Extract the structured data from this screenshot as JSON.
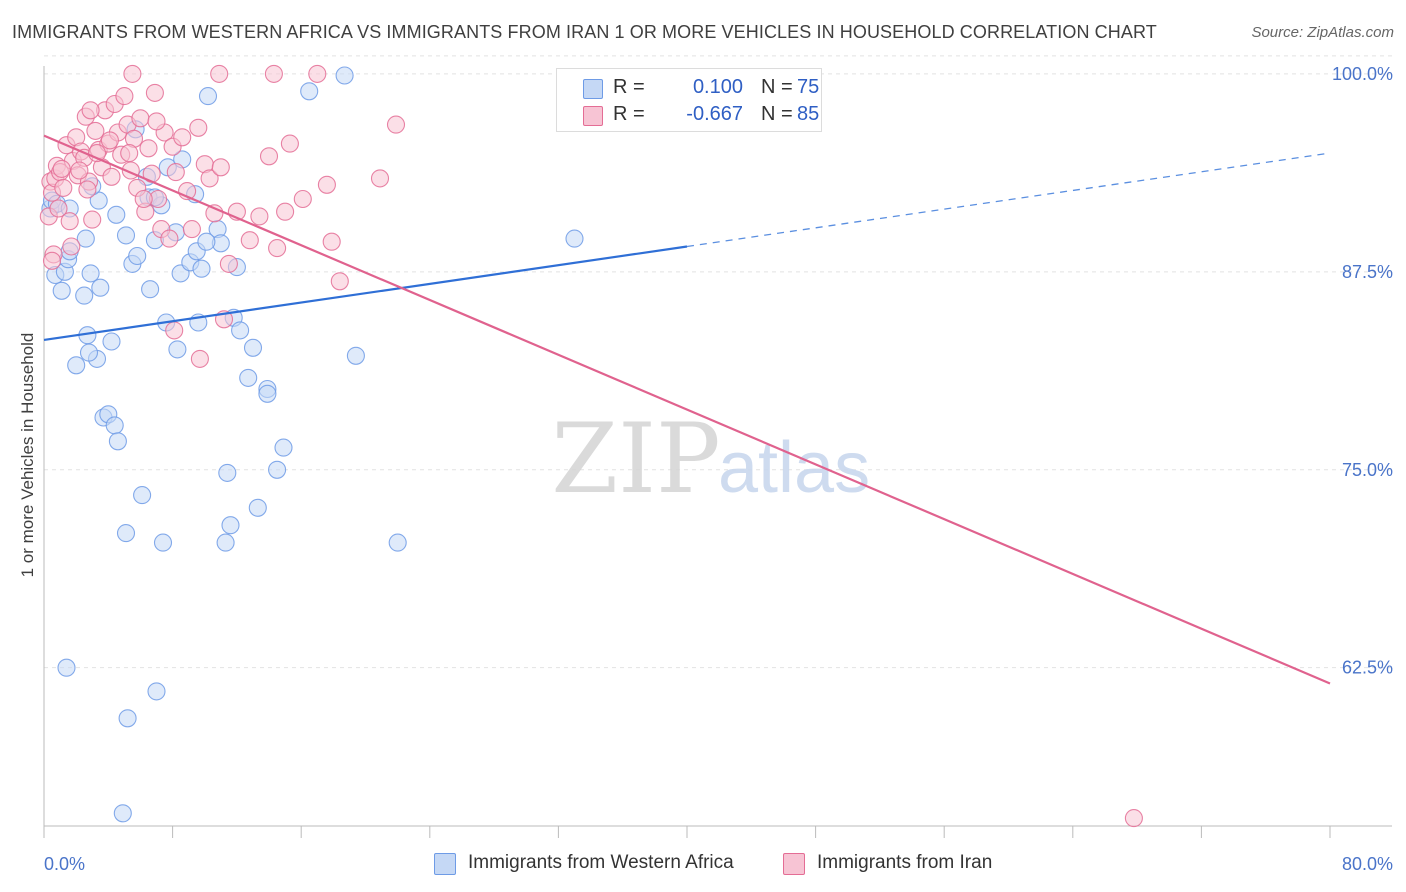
{
  "chart_data": {
    "type": "scatter",
    "title": "IMMIGRANTS FROM WESTERN AFRICA VS IMMIGRANTS FROM IRAN 1 OR MORE VEHICLES IN HOUSEHOLD CORRELATION CHART",
    "source": "Source: ZipAtlas.com",
    "xlabel": "",
    "ylabel": "1 or more Vehicles in Household",
    "xlim": [
      0,
      80
    ],
    "ylim": [
      52.5,
      100.5
    ],
    "x_tick_labels": [
      "0.0%",
      "80.0%"
    ],
    "y_ticks": [
      62.5,
      75.0,
      87.5,
      100.0
    ],
    "y_tick_labels": [
      "62.5%",
      "75.0%",
      "87.5%",
      "100.0%"
    ],
    "grid": true,
    "watermark": "ZIPatlas",
    "legend": {
      "placement": "top-center",
      "entries": [
        {
          "r_label": "R =",
          "r_value": "0.100",
          "n_label": "N =",
          "n_value": "75"
        },
        {
          "r_label": "R =",
          "r_value": "-0.667",
          "n_label": "N =",
          "n_value": "85"
        }
      ]
    },
    "series": [
      {
        "name": "Immigrants from Western Africa",
        "color": "#6e9be6",
        "fill": "#c5d8f5",
        "trend": {
          "x": [
            0,
            40
          ],
          "y": [
            83.2,
            89.1
          ],
          "dashed_to": [
            80,
            95.0
          ]
        },
        "points": [
          [
            0.4,
            91.5
          ],
          [
            0.5,
            92.0
          ],
          [
            0.7,
            87.3
          ],
          [
            0.8,
            91.8
          ],
          [
            1.1,
            86.3
          ],
          [
            1.3,
            87.5
          ],
          [
            1.5,
            88.3
          ],
          [
            1.6,
            91.5
          ],
          [
            2.0,
            81.6
          ],
          [
            2.5,
            86.0
          ],
          [
            2.6,
            89.6
          ],
          [
            2.7,
            83.5
          ],
          [
            2.9,
            87.4
          ],
          [
            3.3,
            82.0
          ],
          [
            3.4,
            92.0
          ],
          [
            3.5,
            86.5
          ],
          [
            3.7,
            78.3
          ],
          [
            4.0,
            78.5
          ],
          [
            4.2,
            83.1
          ],
          [
            4.4,
            77.8
          ],
          [
            4.5,
            91.1
          ],
          [
            4.6,
            76.8
          ],
          [
            5.1,
            89.8
          ],
          [
            5.5,
            88.0
          ],
          [
            5.7,
            96.5
          ],
          [
            5.8,
            88.5
          ],
          [
            6.1,
            73.4
          ],
          [
            6.5,
            92.2
          ],
          [
            6.6,
            86.4
          ],
          [
            6.9,
            89.5
          ],
          [
            7.3,
            91.7
          ],
          [
            7.6,
            84.3
          ],
          [
            7.7,
            94.1
          ],
          [
            8.2,
            90.0
          ],
          [
            8.3,
            82.6
          ],
          [
            8.5,
            87.4
          ],
          [
            8.6,
            94.6
          ],
          [
            9.1,
            88.1
          ],
          [
            9.4,
            92.4
          ],
          [
            9.5,
            88.8
          ],
          [
            9.8,
            87.7
          ],
          [
            10.2,
            98.6
          ],
          [
            10.8,
            90.2
          ],
          [
            11.0,
            89.3
          ],
          [
            11.4,
            74.8
          ],
          [
            11.6,
            71.5
          ],
          [
            11.8,
            84.6
          ],
          [
            12.2,
            83.8
          ],
          [
            12.7,
            80.8
          ],
          [
            13.0,
            82.7
          ],
          [
            13.3,
            72.6
          ],
          [
            13.9,
            80.1
          ],
          [
            14.5,
            75.0
          ],
          [
            14.9,
            76.4
          ],
          [
            16.5,
            98.9
          ],
          [
            18.7,
            99.9
          ],
          [
            19.4,
            82.2
          ],
          [
            22.0,
            70.4
          ],
          [
            33.0,
            89.6
          ],
          [
            1.4,
            62.5
          ],
          [
            7.0,
            61.0
          ],
          [
            5.2,
            59.3
          ],
          [
            4.9,
            53.3
          ],
          [
            5.1,
            71.0
          ],
          [
            7.4,
            70.4
          ],
          [
            11.3,
            70.4
          ],
          [
            1.6,
            88.8
          ],
          [
            2.8,
            82.4
          ],
          [
            6.9,
            92.2
          ],
          [
            9.6,
            84.3
          ],
          [
            13.9,
            79.8
          ],
          [
            10.1,
            89.4
          ],
          [
            3.0,
            92.9
          ],
          [
            6.4,
            93.5
          ],
          [
            12.0,
            87.8
          ]
        ]
      },
      {
        "name": "Immigrants from Iran",
        "color": "#e46d95",
        "fill": "#f7c4d4",
        "trend": {
          "x": [
            0,
            80
          ],
          "y": [
            96.1,
            61.5
          ]
        },
        "points": [
          [
            0.3,
            91.0
          ],
          [
            0.4,
            93.2
          ],
          [
            0.5,
            92.5
          ],
          [
            0.6,
            88.6
          ],
          [
            0.7,
            93.4
          ],
          [
            0.8,
            94.2
          ],
          [
            0.9,
            91.5
          ],
          [
            1.0,
            93.8
          ],
          [
            1.2,
            92.8
          ],
          [
            1.4,
            95.5
          ],
          [
            1.6,
            90.7
          ],
          [
            1.8,
            94.5
          ],
          [
            2.0,
            96.0
          ],
          [
            2.1,
            93.6
          ],
          [
            2.3,
            95.1
          ],
          [
            2.5,
            94.7
          ],
          [
            2.6,
            97.3
          ],
          [
            2.8,
            93.2
          ],
          [
            3.0,
            90.8
          ],
          [
            3.2,
            96.4
          ],
          [
            3.4,
            95.2
          ],
          [
            3.6,
            94.1
          ],
          [
            3.8,
            97.7
          ],
          [
            4.0,
            95.6
          ],
          [
            4.2,
            93.5
          ],
          [
            4.4,
            98.1
          ],
          [
            4.6,
            96.3
          ],
          [
            4.8,
            94.9
          ],
          [
            5.0,
            98.6
          ],
          [
            5.2,
            96.8
          ],
          [
            5.4,
            93.9
          ],
          [
            5.6,
            95.9
          ],
          [
            5.8,
            92.8
          ],
          [
            6.0,
            97.2
          ],
          [
            6.3,
            91.3
          ],
          [
            6.5,
            95.3
          ],
          [
            6.7,
            93.7
          ],
          [
            6.9,
            98.8
          ],
          [
            7.1,
            92.1
          ],
          [
            7.3,
            90.2
          ],
          [
            7.5,
            96.3
          ],
          [
            7.8,
            89.6
          ],
          [
            8.0,
            95.4
          ],
          [
            8.2,
            93.8
          ],
          [
            8.6,
            96.0
          ],
          [
            8.9,
            92.6
          ],
          [
            9.2,
            90.2
          ],
          [
            9.6,
            96.6
          ],
          [
            10.0,
            94.3
          ],
          [
            10.3,
            93.4
          ],
          [
            10.6,
            91.2
          ],
          [
            11.0,
            94.1
          ],
          [
            11.5,
            88.0
          ],
          [
            12.0,
            91.3
          ],
          [
            12.8,
            89.5
          ],
          [
            13.4,
            91.0
          ],
          [
            14.0,
            94.8
          ],
          [
            14.5,
            89.0
          ],
          [
            15.0,
            91.3
          ],
          [
            15.3,
            95.6
          ],
          [
            16.1,
            92.1
          ],
          [
            17.6,
            93.0
          ],
          [
            17.9,
            89.4
          ],
          [
            18.4,
            86.9
          ],
          [
            20.9,
            93.4
          ],
          [
            21.9,
            96.8
          ],
          [
            11.2,
            84.5
          ],
          [
            9.7,
            82.0
          ],
          [
            8.1,
            83.8
          ],
          [
            6.2,
            92.1
          ],
          [
            5.3,
            95.0
          ],
          [
            4.1,
            95.8
          ],
          [
            3.3,
            95.0
          ],
          [
            2.7,
            92.7
          ],
          [
            2.2,
            93.9
          ],
          [
            1.7,
            89.1
          ],
          [
            1.1,
            94.0
          ],
          [
            10.9,
            100.0
          ],
          [
            14.3,
            100.0
          ],
          [
            17.0,
            100.0
          ],
          [
            5.5,
            100.0
          ],
          [
            67.8,
            53.0
          ],
          [
            0.5,
            88.2
          ],
          [
            2.9,
            97.7
          ],
          [
            7.0,
            97.0
          ]
        ]
      }
    ]
  }
}
